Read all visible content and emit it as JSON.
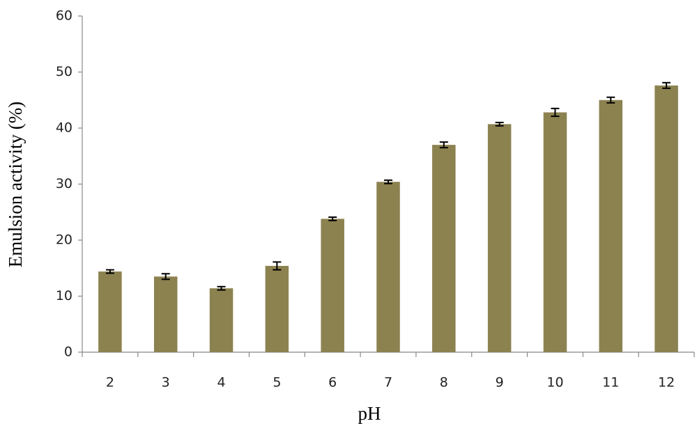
{
  "chart_data": {
    "type": "bar",
    "x_label": "pH",
    "y_label": "Emulsion activity (%)",
    "categories": [
      "2",
      "3",
      "4",
      "5",
      "6",
      "7",
      "8",
      "9",
      "10",
      "11",
      "12"
    ],
    "values": [
      14.4,
      13.5,
      11.4,
      15.4,
      23.8,
      30.4,
      37.0,
      40.7,
      42.8,
      45.0,
      47.6
    ],
    "errors": [
      0.3,
      0.5,
      0.3,
      0.7,
      0.3,
      0.3,
      0.5,
      0.3,
      0.7,
      0.5,
      0.5
    ],
    "color": "#8c8250",
    "ylim": [
      0,
      60
    ],
    "yticks": [
      0,
      10,
      20,
      30,
      40,
      50,
      60
    ],
    "grid": false
  }
}
